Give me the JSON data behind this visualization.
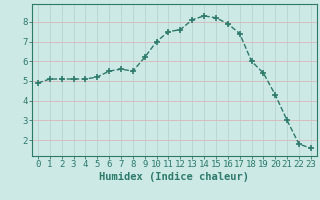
{
  "x": [
    0,
    1,
    2,
    3,
    4,
    5,
    6,
    7,
    8,
    9,
    10,
    11,
    12,
    13,
    14,
    15,
    16,
    17,
    18,
    19,
    20,
    21,
    22,
    23
  ],
  "y": [
    4.9,
    5.1,
    5.1,
    5.1,
    5.1,
    5.2,
    5.5,
    5.6,
    5.5,
    6.2,
    7.0,
    7.5,
    7.6,
    8.1,
    8.3,
    8.2,
    7.9,
    7.4,
    6.0,
    5.4,
    4.3,
    3.0,
    1.8,
    1.6
  ],
  "line_color": "#2d7a6a",
  "marker": "+",
  "marker_size": 5,
  "marker_lw": 1.2,
  "bg_color": "#cce9e5",
  "grid_h_color": "#d9b8b8",
  "grid_v_color": "#b8d4d0",
  "xlabel": "Humidex (Indice chaleur)",
  "xlabel_fontsize": 7.5,
  "ylim": [
    1.2,
    8.9
  ],
  "xlim": [
    -0.5,
    23.5
  ],
  "yticks": [
    2,
    3,
    4,
    5,
    6,
    7,
    8
  ],
  "xticks": [
    0,
    1,
    2,
    3,
    4,
    5,
    6,
    7,
    8,
    9,
    10,
    11,
    12,
    13,
    14,
    15,
    16,
    17,
    18,
    19,
    20,
    21,
    22,
    23
  ],
  "tick_color": "#2d7a6a",
  "axis_color": "#2d7a6a",
  "tick_fontsize": 6.5,
  "line_width": 1.0,
  "line_style": "--"
}
